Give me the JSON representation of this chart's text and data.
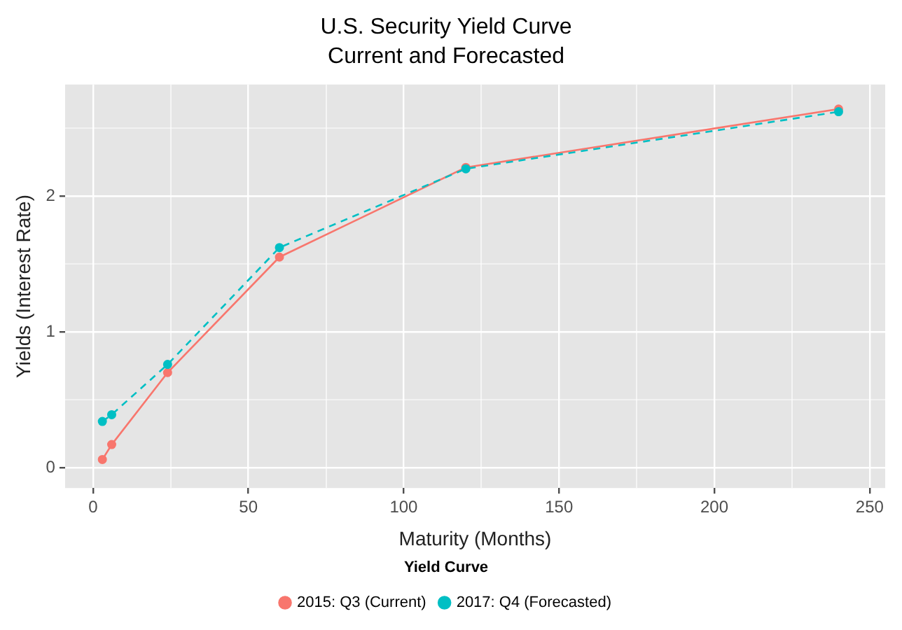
{
  "chart_data": {
    "type": "line",
    "title": "U.S. Security Yield Curve",
    "subtitle": "Current and Forecasted",
    "xlabel": "Maturity (Months)",
    "ylabel": "Yields (Interest Rate)",
    "legend_title": "Yield Curve",
    "x": [
      3,
      6,
      24,
      60,
      120,
      240
    ],
    "series": [
      {
        "name": "2015: Q3 (Current)",
        "color": "#f8766d",
        "line_style": "solid",
        "values": [
          0.06,
          0.17,
          0.7,
          1.55,
          2.21,
          2.64
        ]
      },
      {
        "name": "2017: Q4 (Forecasted)",
        "color": "#00bfc4",
        "line_style": "dashed",
        "values": [
          0.34,
          0.39,
          0.76,
          1.62,
          2.2,
          2.62
        ]
      }
    ],
    "xlim": [
      -9,
      255
    ],
    "xticks": [
      0,
      {
        "value": 25,
        "label": null
      },
      50,
      {
        "value": 75,
        "label": null
      },
      100,
      {
        "value": 125,
        "label": null
      },
      150,
      {
        "value": 175,
        "label": null
      },
      200,
      {
        "value": 225,
        "label": null
      },
      250
    ],
    "ylim": [
      -0.15,
      2.82
    ],
    "yticks": [
      0,
      {
        "value": 0.5,
        "label": null
      },
      1,
      {
        "value": 1.5,
        "label": null
      },
      2,
      {
        "value": 2.5,
        "label": null
      }
    ],
    "grid": true,
    "legend": "bottom",
    "marker": "circle"
  }
}
